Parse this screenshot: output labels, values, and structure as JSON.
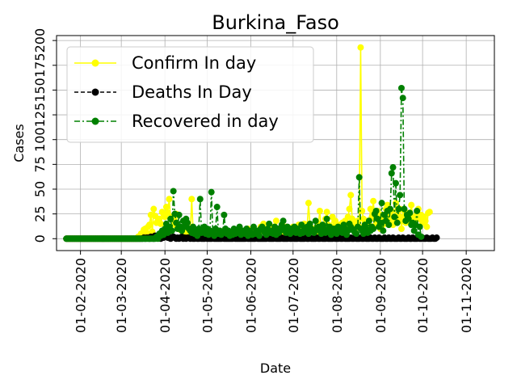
{
  "chart_data": {
    "type": "line",
    "title": "Burkina_Faso",
    "xlabel": "Date",
    "ylabel": "Cases",
    "x_start": "2020-01-22",
    "x_end": "2020-11-14",
    "xlim": [
      "2020-01-15",
      "2020-11-21"
    ],
    "ylim": [
      -12,
      205
    ],
    "grid": true,
    "legend_position": "top-left",
    "x_ticks": [
      "01-02-2020",
      "01-03-2020",
      "01-04-2020",
      "01-05-2020",
      "01-06-2020",
      "01-07-2020",
      "01-08-2020",
      "01-09-2020",
      "01-10-2020",
      "01-11-2020"
    ],
    "y_ticks": [
      0,
      25,
      50,
      75,
      100,
      125,
      150,
      175,
      200
    ],
    "y_tick_labels": [
      "0",
      "25",
      "50",
      "75",
      "100",
      "125",
      "150",
      "175",
      "200"
    ],
    "series": [
      {
        "name": "Confirm In day",
        "color": "#ffff00",
        "dash": "solid",
        "values": [
          0,
          0,
          0,
          0,
          0,
          0,
          0,
          0,
          0,
          0,
          0,
          0,
          0,
          0,
          0,
          0,
          0,
          0,
          0,
          0,
          0,
          0,
          0,
          0,
          0,
          0,
          0,
          0,
          0,
          0,
          0,
          0,
          0,
          0,
          0,
          0,
          0,
          0,
          0,
          0,
          0,
          0,
          0,
          0,
          0,
          0,
          0,
          0,
          0,
          0,
          0,
          2,
          0,
          5,
          5,
          9,
          10,
          6,
          12,
          14,
          24,
          7,
          30,
          23,
          16,
          18,
          20,
          15,
          27,
          25,
          22,
          32,
          26,
          40,
          20,
          22,
          18,
          14,
          25,
          12,
          10,
          9,
          8,
          10,
          6,
          12,
          10,
          8,
          6,
          40,
          8,
          5,
          6,
          4,
          7,
          3,
          5,
          4,
          6,
          3,
          8,
          2,
          4,
          5,
          3,
          6,
          4,
          3,
          6,
          2,
          4,
          3,
          8,
          5,
          6,
          3,
          4,
          2,
          5,
          3,
          6,
          4,
          3,
          6,
          5,
          4,
          7,
          3,
          6,
          10,
          7,
          4,
          5,
          8,
          4,
          6,
          3,
          8,
          12,
          8,
          15,
          10,
          7,
          8,
          5,
          10,
          6,
          12,
          8,
          18,
          8,
          10,
          7,
          6,
          9,
          10,
          12,
          8,
          10,
          7,
          5,
          12,
          6,
          10,
          8,
          14,
          10,
          6,
          8,
          15,
          10,
          12,
          36,
          14,
          8,
          10,
          9,
          6,
          12,
          15,
          28,
          10,
          8,
          12,
          20,
          27,
          14,
          10,
          8,
          22,
          12,
          18,
          10,
          14,
          8,
          12,
          16,
          10,
          18,
          14,
          22,
          30,
          44,
          20,
          16,
          10,
          14,
          18,
          12,
          193,
          28,
          20,
          16,
          12,
          18,
          14,
          30,
          22,
          38,
          20,
          15,
          28,
          18,
          10,
          24,
          14,
          20,
          30,
          34,
          18,
          22,
          28,
          14,
          20,
          36,
          24,
          18,
          30,
          10,
          22,
          28,
          16,
          26,
          18,
          20,
          34,
          22,
          18,
          14,
          26,
          30,
          20,
          24,
          16,
          22,
          18,
          12,
          26,
          27
        ]
      },
      {
        "name": "Deaths In Day",
        "color": "#000000",
        "dash": "dashed",
        "values": [
          0,
          0,
          0,
          0,
          0,
          0,
          0,
          0,
          0,
          0,
          0,
          0,
          0,
          0,
          0,
          0,
          0,
          0,
          0,
          0,
          0,
          0,
          0,
          0,
          0,
          0,
          0,
          0,
          0,
          0,
          0,
          0,
          0,
          0,
          0,
          0,
          0,
          0,
          0,
          0,
          0,
          0,
          0,
          0,
          0,
          0,
          0,
          0,
          0,
          0,
          0,
          0,
          0,
          0,
          0,
          1,
          0,
          1,
          1,
          0,
          2,
          1,
          0,
          3,
          1,
          2,
          1,
          0,
          2,
          1,
          3,
          2,
          1,
          2,
          0,
          1,
          2,
          1,
          0,
          1,
          0,
          1,
          2,
          0,
          1,
          0,
          1,
          1,
          0,
          1,
          0,
          0,
          1,
          0,
          0,
          1,
          0,
          0,
          0,
          1,
          0,
          0,
          0,
          0,
          1,
          0,
          0,
          0,
          0,
          0,
          0,
          1,
          0,
          0,
          0,
          0,
          0,
          0,
          0,
          1,
          0,
          0,
          0,
          0,
          0,
          0,
          0,
          0,
          1,
          0,
          0,
          0,
          0,
          0,
          0,
          1,
          0,
          0,
          0,
          0,
          0,
          0,
          0,
          1,
          0,
          0,
          0,
          0,
          1,
          0,
          0,
          0,
          0,
          1,
          0,
          0,
          0,
          0,
          1,
          0,
          0,
          1,
          0,
          0,
          0,
          1,
          0,
          0,
          0,
          0,
          1,
          0,
          0,
          1,
          0,
          0,
          0,
          0,
          1,
          0,
          0,
          1,
          0,
          0,
          0,
          1,
          0,
          0,
          0,
          0,
          1,
          0,
          0,
          0,
          1,
          0,
          0,
          1,
          0,
          0,
          0,
          0,
          1,
          0,
          0,
          1,
          0,
          0,
          0,
          1,
          0,
          0,
          1,
          0,
          0,
          0,
          1,
          0,
          0,
          1,
          0,
          0,
          1,
          0,
          0,
          0,
          1,
          0,
          0,
          1,
          0,
          0,
          1,
          0,
          0,
          0,
          1,
          0,
          0,
          1,
          0,
          0,
          0,
          1,
          0,
          0,
          1,
          0,
          0,
          0,
          1,
          0,
          0,
          1,
          0,
          0,
          1,
          0,
          0,
          0,
          1,
          0,
          0,
          1
        ]
      },
      {
        "name": "Recovered in day",
        "color": "#008000",
        "dash": "dashdot",
        "values": [
          0,
          0,
          0,
          0,
          0,
          0,
          0,
          0,
          0,
          0,
          0,
          0,
          0,
          0,
          0,
          0,
          0,
          0,
          0,
          0,
          0,
          0,
          0,
          0,
          0,
          0,
          0,
          0,
          0,
          0,
          0,
          0,
          0,
          0,
          0,
          0,
          0,
          0,
          0,
          0,
          0,
          0,
          0,
          0,
          0,
          0,
          0,
          0,
          0,
          0,
          0,
          0,
          0,
          0,
          0,
          0,
          0,
          0,
          0,
          0,
          0,
          0,
          0,
          0,
          2,
          0,
          5,
          3,
          8,
          4,
          10,
          15,
          6,
          12,
          20,
          8,
          48,
          25,
          16,
          10,
          24,
          12,
          8,
          18,
          12,
          20,
          16,
          10,
          8,
          6,
          12,
          5,
          8,
          3,
          10,
          40,
          6,
          8,
          12,
          5,
          10,
          4,
          8,
          47,
          6,
          3,
          10,
          32,
          5,
          8,
          4,
          6,
          24,
          10,
          5,
          8,
          3,
          6,
          4,
          10,
          5,
          8,
          6,
          12,
          4,
          8,
          6,
          5,
          10,
          3,
          8,
          6,
          4,
          12,
          5,
          8,
          6,
          3,
          10,
          12,
          8,
          6,
          4,
          10,
          15,
          6,
          8,
          5,
          12,
          4,
          10,
          6,
          8,
          14,
          18,
          10,
          6,
          12,
          8,
          5,
          10,
          7,
          12,
          6,
          10,
          8,
          5,
          14,
          6,
          10,
          8,
          12,
          5,
          15,
          10,
          8,
          6,
          18,
          10,
          12,
          8,
          5,
          14,
          10,
          6,
          20,
          8,
          12,
          4,
          6,
          10,
          8,
          5,
          12,
          10,
          8,
          6,
          14,
          10,
          4,
          8,
          15,
          12,
          10,
          8,
          6,
          5,
          12,
          62,
          10,
          8,
          5,
          14,
          10,
          6,
          18,
          8,
          12,
          10,
          25,
          28,
          20,
          12,
          16,
          36,
          8,
          24,
          18,
          28,
          14,
          30,
          66,
          72,
          22,
          56,
          16,
          30,
          44,
          152,
          142,
          30,
          18,
          24,
          20,
          26,
          14,
          16,
          8,
          14,
          28,
          4,
          12,
          2
        ]
      }
    ]
  }
}
